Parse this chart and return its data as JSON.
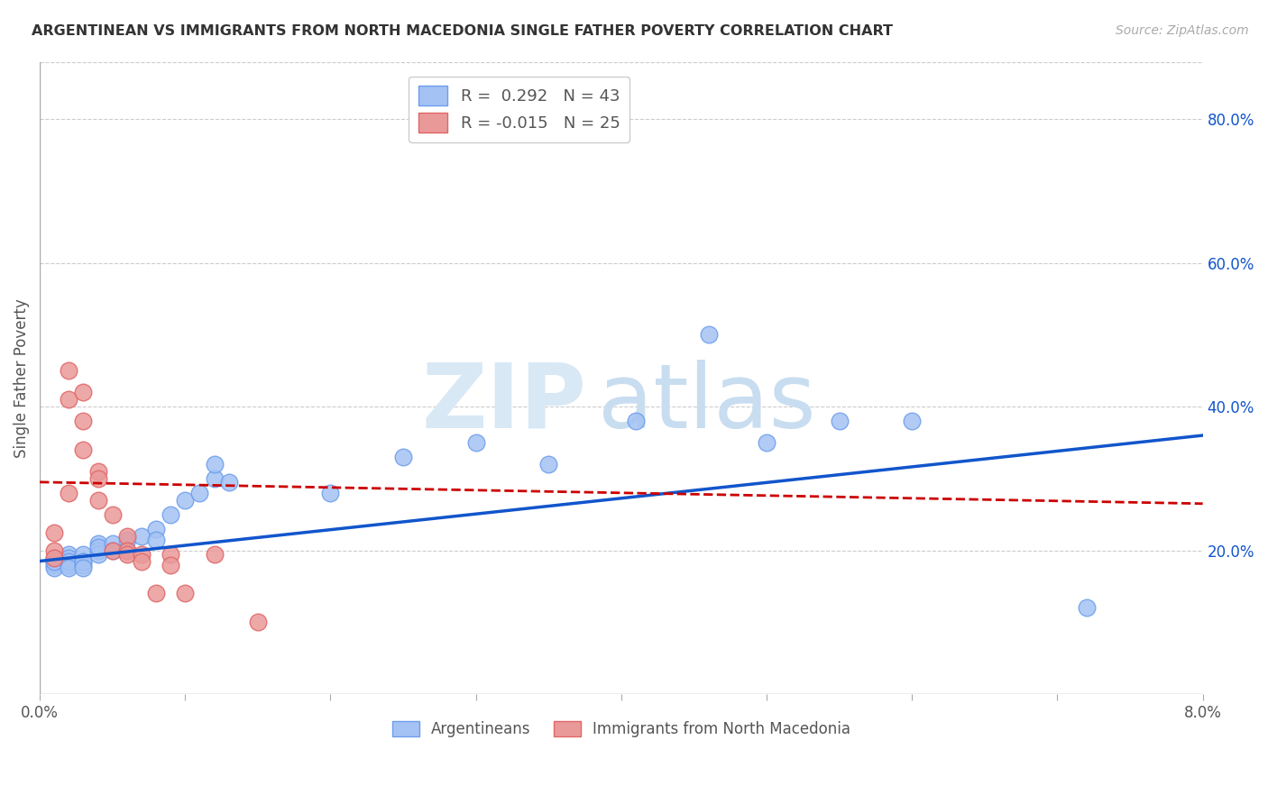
{
  "title": "ARGENTINEAN VS IMMIGRANTS FROM NORTH MACEDONIA SINGLE FATHER POVERTY CORRELATION CHART",
  "source": "Source: ZipAtlas.com",
  "ylabel": "Single Father Poverty",
  "right_yticks": [
    0.0,
    0.2,
    0.4,
    0.6,
    0.8
  ],
  "right_yticklabels": [
    "",
    "20.0%",
    "40.0%",
    "60.0%",
    "80.0%"
  ],
  "watermark_zip": "ZIP",
  "watermark_atlas": "atlas",
  "legend_blue_R": "0.292",
  "legend_blue_N": "43",
  "legend_pink_R": "-0.015",
  "legend_pink_N": "25",
  "blue_color": "#a4c2f4",
  "pink_color": "#ea9999",
  "blue_edge_color": "#6d9eeb",
  "pink_edge_color": "#e06666",
  "trend_blue_color": "#1155cc",
  "trend_pink_color": "#cc0000",
  "blue_scatter_x": [
    0.001,
    0.001,
    0.001,
    0.001,
    0.001,
    0.002,
    0.002,
    0.002,
    0.002,
    0.002,
    0.002,
    0.003,
    0.003,
    0.003,
    0.003,
    0.003,
    0.004,
    0.004,
    0.004,
    0.004,
    0.005,
    0.005,
    0.006,
    0.006,
    0.007,
    0.008,
    0.008,
    0.009,
    0.01,
    0.011,
    0.012,
    0.012,
    0.013,
    0.02,
    0.025,
    0.03,
    0.035,
    0.041,
    0.046,
    0.05,
    0.055,
    0.06,
    0.072
  ],
  "blue_scatter_y": [
    0.185,
    0.18,
    0.19,
    0.175,
    0.185,
    0.195,
    0.185,
    0.18,
    0.19,
    0.185,
    0.175,
    0.195,
    0.185,
    0.18,
    0.185,
    0.175,
    0.21,
    0.2,
    0.195,
    0.205,
    0.21,
    0.2,
    0.215,
    0.2,
    0.22,
    0.23,
    0.215,
    0.25,
    0.27,
    0.28,
    0.3,
    0.32,
    0.295,
    0.28,
    0.33,
    0.35,
    0.32,
    0.38,
    0.5,
    0.35,
    0.38,
    0.38,
    0.12
  ],
  "pink_scatter_x": [
    0.001,
    0.001,
    0.001,
    0.002,
    0.002,
    0.002,
    0.003,
    0.003,
    0.003,
    0.004,
    0.004,
    0.004,
    0.005,
    0.005,
    0.006,
    0.006,
    0.006,
    0.007,
    0.007,
    0.008,
    0.009,
    0.009,
    0.01,
    0.012,
    0.015
  ],
  "pink_scatter_y": [
    0.2,
    0.225,
    0.19,
    0.41,
    0.45,
    0.28,
    0.42,
    0.38,
    0.34,
    0.31,
    0.27,
    0.3,
    0.25,
    0.2,
    0.22,
    0.2,
    0.195,
    0.195,
    0.185,
    0.14,
    0.195,
    0.18,
    0.14,
    0.195,
    0.1
  ],
  "xlim": [
    0.0,
    0.08
  ],
  "ylim": [
    0.0,
    0.88
  ],
  "blue_trend_x": [
    0.0,
    0.08
  ],
  "blue_trend_y": [
    0.185,
    0.36
  ],
  "pink_trend_x": [
    0.0,
    0.08
  ],
  "pink_trend_y": [
    0.295,
    0.265
  ],
  "xticks": [
    0.0,
    0.01,
    0.02,
    0.03,
    0.04,
    0.05,
    0.06,
    0.07,
    0.08
  ],
  "xticklabels": [
    "0.0%",
    "",
    "",
    "",
    "",
    "",
    "",
    "",
    "8.0%"
  ],
  "background_color": "#ffffff",
  "grid_color": "#cccccc"
}
